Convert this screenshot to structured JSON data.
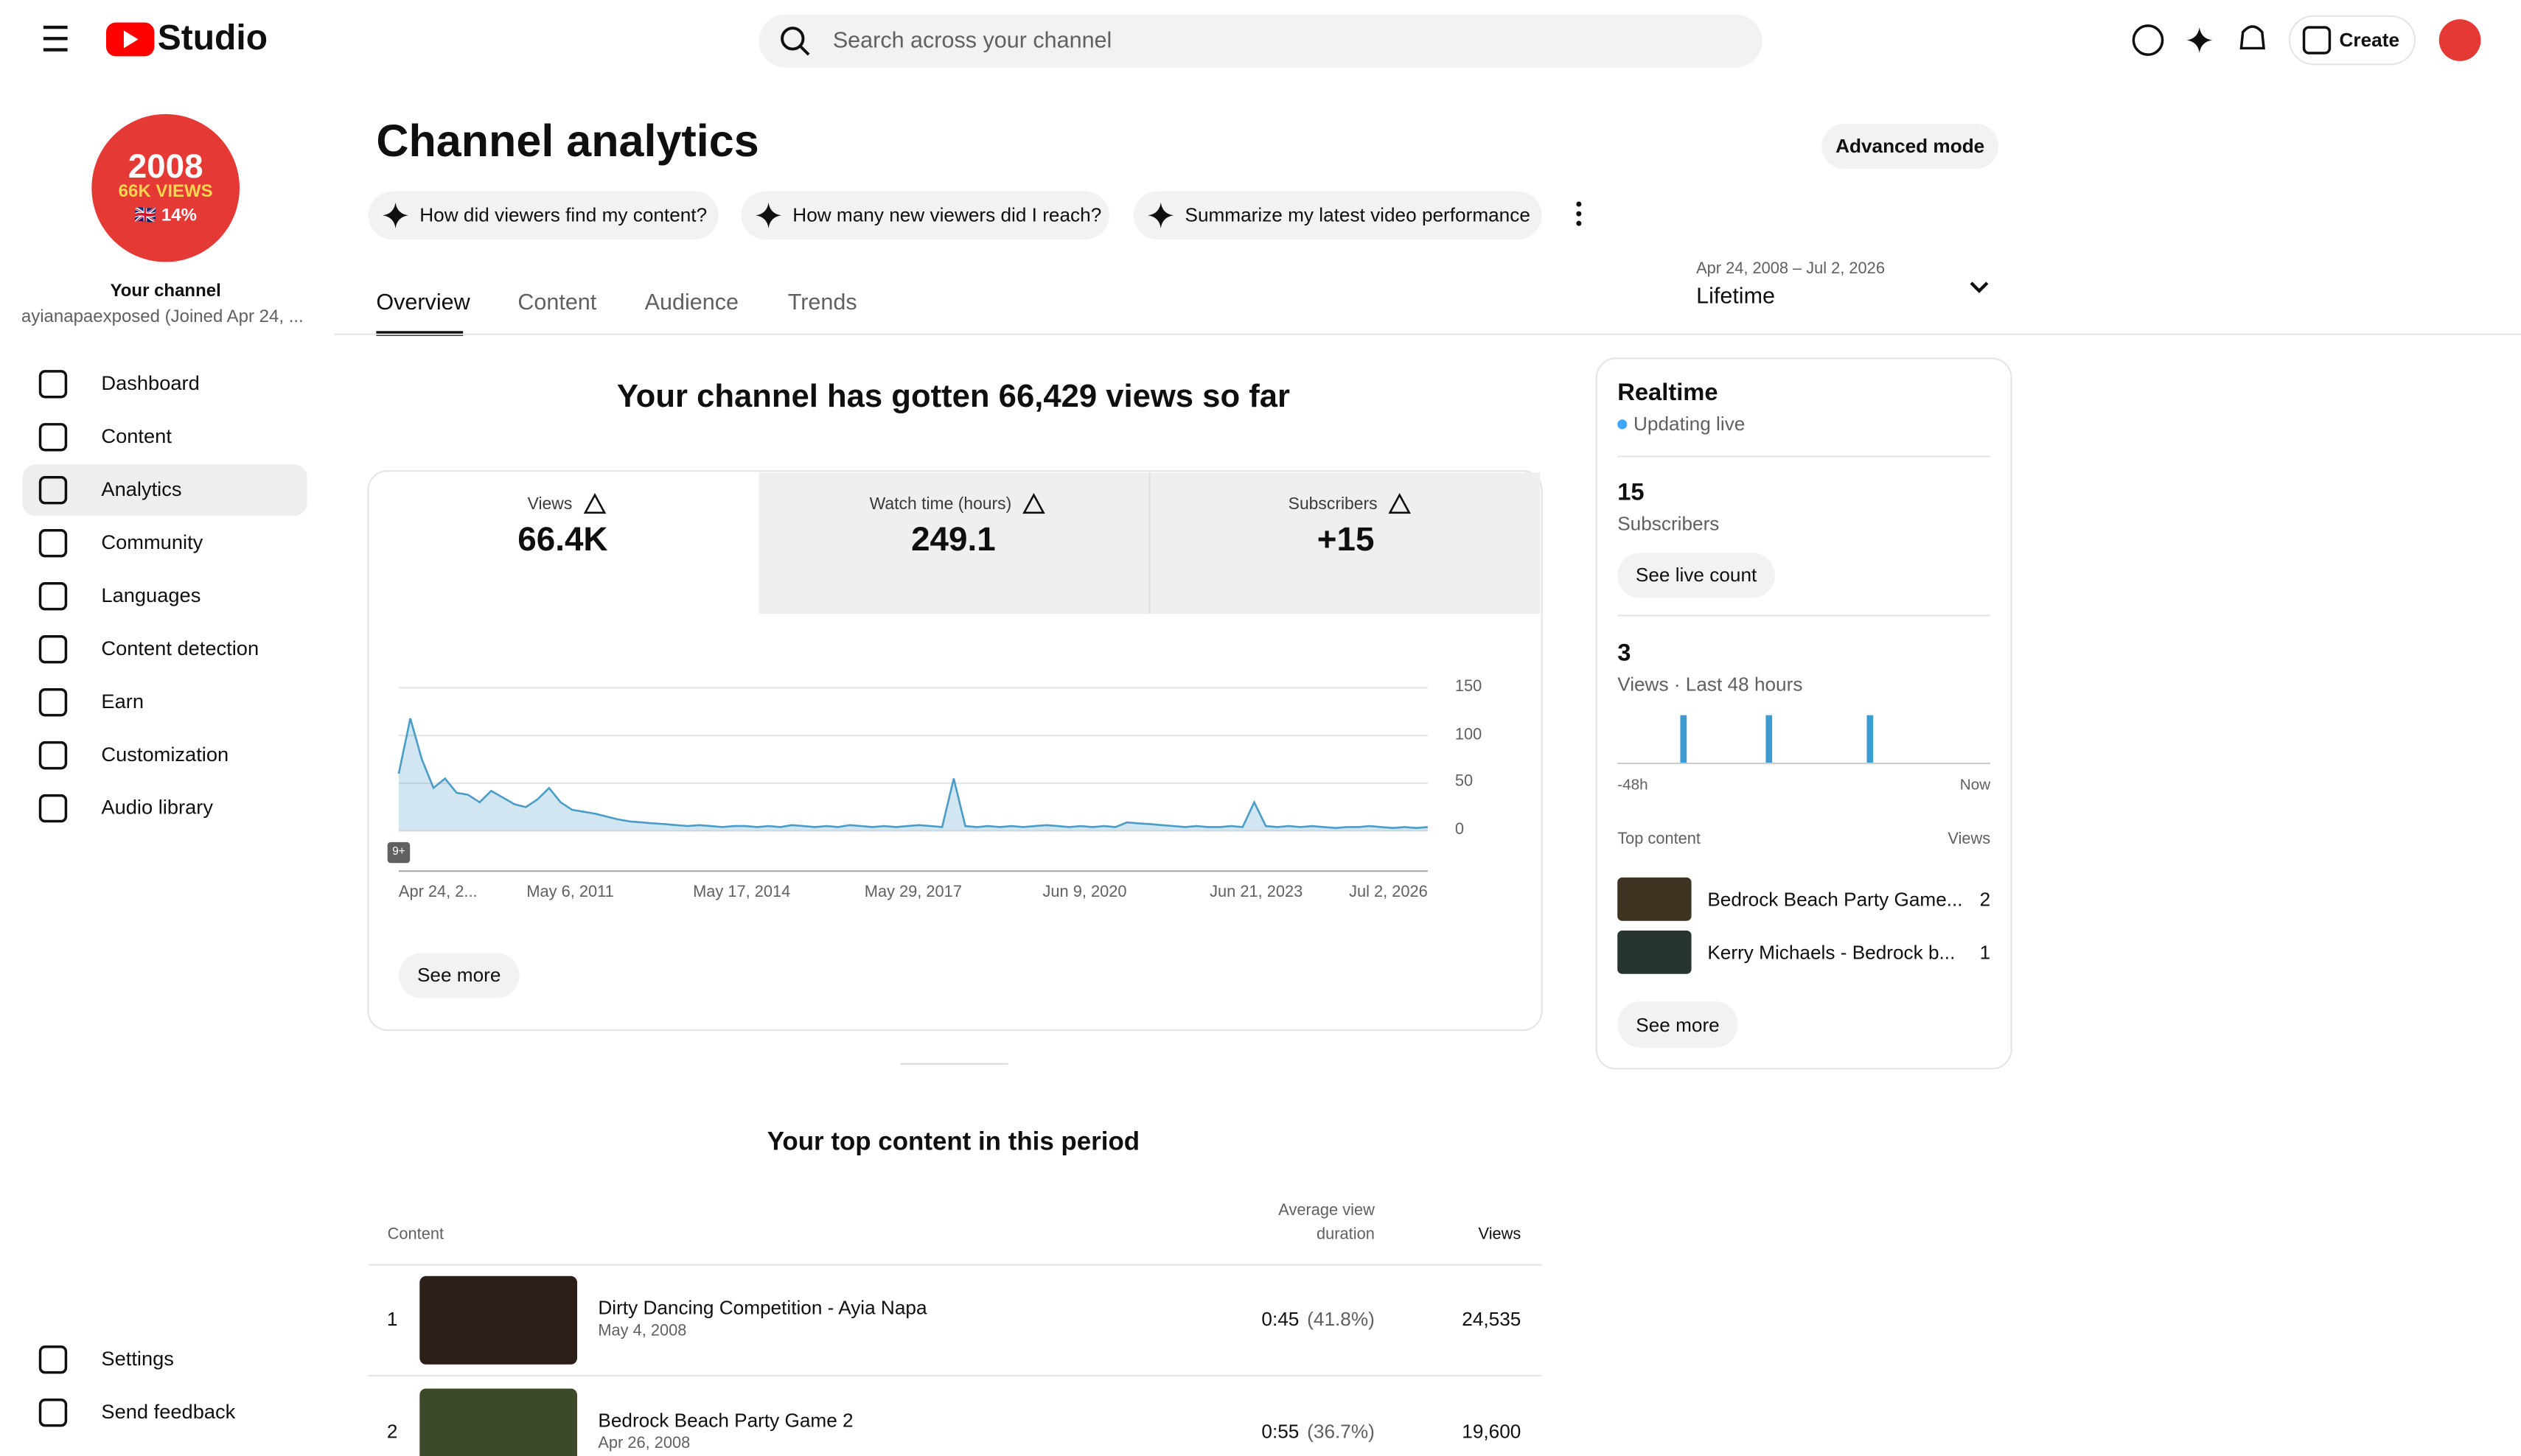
{
  "header": {
    "app": "Studio",
    "search_placeholder": "Search across your channel",
    "create": "Create"
  },
  "channel": {
    "avatar_lines": [
      "2008",
      "66K VIEWS",
      "🇬🇧 14%"
    ],
    "label": "Your channel",
    "name": "ayianapaexposed (Joined Apr 24, ..."
  },
  "nav": [
    "Dashboard",
    "Content",
    "Analytics",
    "Community",
    "Languages",
    "Content detection",
    "Earn",
    "Customization",
    "Audio library"
  ],
  "nav_bottom": [
    "Settings",
    "Send feedback"
  ],
  "page": {
    "title": "Channel analytics",
    "advanced": "Advanced mode",
    "prompts": [
      "How did viewers find my content?",
      "How many new viewers did I reach?",
      "Summarize my latest video performance"
    ],
    "tabs": [
      "Overview",
      "Content",
      "Audience",
      "Trends"
    ],
    "date_range": "Apr 24, 2008 – Jul 2, 2026",
    "period": "Lifetime"
  },
  "overview": {
    "headline": "Your channel has gotten 66,429 views so far",
    "metrics": [
      {
        "label": "Views",
        "value": "66.4K"
      },
      {
        "label": "Watch time (hours)",
        "value": "249.1"
      },
      {
        "label": "Subscribers",
        "value": "+15"
      }
    ],
    "see_more": "See more"
  },
  "chart_data": {
    "type": "line",
    "color": "#4a9cc9",
    "x_labels": [
      "Apr 24, 2...",
      "May 6, 2011",
      "May 17, 2014",
      "May 29, 2017",
      "Jun 9, 2020",
      "Jun 21, 2023",
      "Jul 2, 2026"
    ],
    "badge": "9+",
    "values": [
      60,
      118,
      75,
      45,
      55,
      40,
      38,
      30,
      42,
      35,
      28,
      25,
      33,
      45,
      30,
      22,
      20,
      18,
      15,
      12,
      10,
      9,
      8,
      7,
      6,
      5,
      6,
      5,
      4,
      5,
      5,
      4,
      5,
      4,
      6,
      5,
      4,
      5,
      4,
      6,
      5,
      4,
      5,
      4,
      5,
      6,
      5,
      4,
      55,
      5,
      4,
      5,
      4,
      5,
      4,
      5,
      6,
      5,
      4,
      5,
      4,
      5,
      4,
      9,
      8,
      7,
      6,
      5,
      4,
      5,
      4,
      4,
      5,
      4,
      30,
      5,
      4,
      5,
      4,
      5,
      4,
      3,
      4,
      4,
      5,
      4,
      3,
      4,
      3,
      4
    ],
    "ylim": [
      0,
      150
    ],
    "yticks": [
      0,
      50,
      100,
      150
    ],
    "grid": true
  },
  "top_content": {
    "title": "Your top content in this period",
    "columns": [
      "Content",
      "Average view",
      "duration",
      "Views"
    ],
    "rows": [
      {
        "rank": "1",
        "title": "Dirty Dancing Competition - Ayia Napa",
        "date": "May 4, 2008",
        "duration": "0:45",
        "percent": "(41.8%)",
        "views": "24,535"
      },
      {
        "rank": "2",
        "title": "Bedrock Beach Party Game 2",
        "date": "Apr 26, 2008",
        "duration": "0:55",
        "percent": "(36.7%)",
        "views": "19,600"
      }
    ]
  },
  "realtime": {
    "title": "Realtime",
    "status": "Updating live",
    "subscribers": "15",
    "subscribers_label": "Subscribers",
    "live_count": "See live count",
    "views": "3",
    "views_label": "Views · Last 48 hours",
    "bars": {
      "values": [
        0,
        0,
        0,
        0,
        0,
        0,
        0,
        0,
        1,
        0,
        0,
        0,
        0,
        0,
        0,
        0,
        0,
        0,
        0,
        1,
        0,
        0,
        0,
        0,
        0,
        0,
        0,
        0,
        0,
        0,
        0,
        0,
        1,
        0,
        0,
        0,
        0,
        0,
        0,
        0,
        0,
        0,
        0,
        0,
        0,
        0,
        0,
        0
      ],
      "ylim": [
        0,
        1
      ],
      "x_labels": [
        "-48h",
        "Now"
      ]
    },
    "top_label": "Top content",
    "views_label_short": "Views",
    "items": [
      {
        "title": "Bedrock Beach Party Game...",
        "views": "2"
      },
      {
        "title": "Kerry Michaels - Bedrock b...",
        "views": "1"
      }
    ],
    "see_more": "See more"
  }
}
